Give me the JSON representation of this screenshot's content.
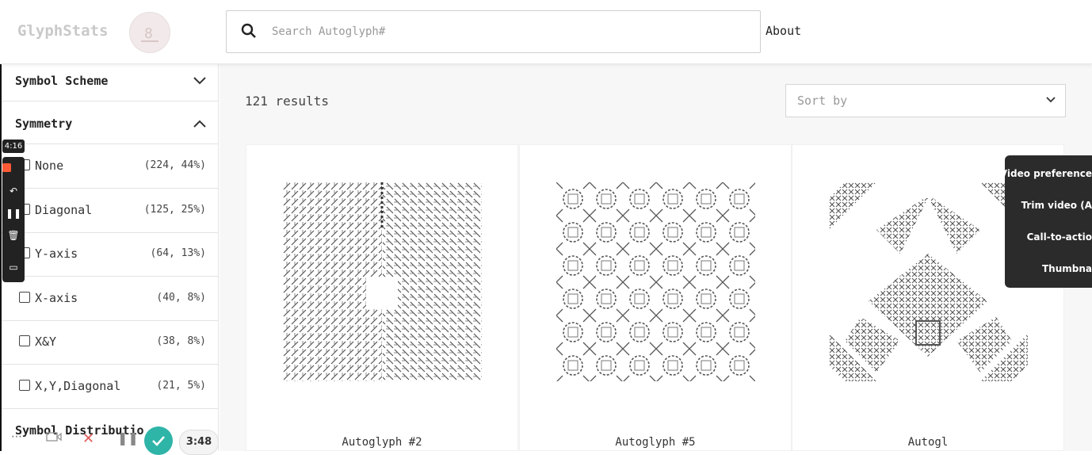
{
  "header": {
    "logo": "GlyphStats",
    "search_placeholder": "Search Autoglyph#",
    "about": "About"
  },
  "sidebar": {
    "sections": {
      "symbol_scheme": "Symbol Scheme",
      "symmetry": "Symmetry",
      "symbol_distribution": "Symbol Distributio"
    },
    "symmetry_options": [
      {
        "label": "None",
        "count": "(224, 44%)"
      },
      {
        "label": "Diagonal",
        "count": "(125, 25%)"
      },
      {
        "label": "Y-axis",
        "count": "(64, 13%)"
      },
      {
        "label": "X-axis",
        "count": "(40, 8%)"
      },
      {
        "label": "X&Y",
        "count": "(38, 8%)"
      },
      {
        "label": "X,Y,Diagonal",
        "count": "(21, 5%)"
      }
    ]
  },
  "main": {
    "results": "121 results",
    "sort_placeholder": "Sort by",
    "cards": [
      {
        "name": "Autoglyph #2"
      },
      {
        "name": "Autoglyph #5"
      },
      {
        "name": "Autogl"
      }
    ]
  },
  "recorder": {
    "elapsed": "4:16",
    "remaining": "3:48",
    "menu": [
      "Video preference",
      "Trim video (A",
      "Call-to-actio",
      "Thumbna"
    ]
  }
}
